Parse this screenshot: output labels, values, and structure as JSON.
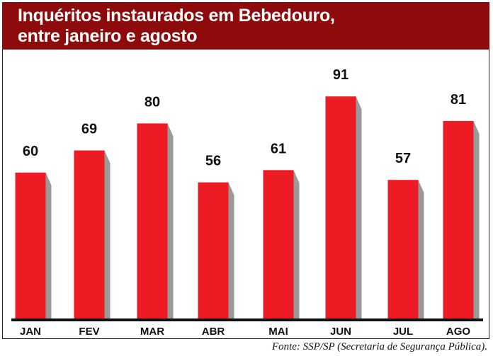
{
  "chart_data": {
    "type": "bar",
    "title": "Inquéritos instaurados em Bebedouro,",
    "subtitle": "entre janeiro e agosto",
    "categories": [
      "JAN",
      "FEV",
      "MAR",
      "ABR",
      "MAI",
      "JUN",
      "JUL",
      "AGO"
    ],
    "values": [
      60,
      69,
      80,
      56,
      61,
      91,
      57,
      81
    ],
    "xlabel": "",
    "ylabel": "",
    "ylim": [
      0,
      100
    ],
    "grid": false,
    "bar_color": "#ed1c24",
    "shadow_color": "#9a9a9a",
    "header_color": "#8e0b0b",
    "source": "Fonte: SSP/SP (Secretaria de Segurança Pública)."
  }
}
